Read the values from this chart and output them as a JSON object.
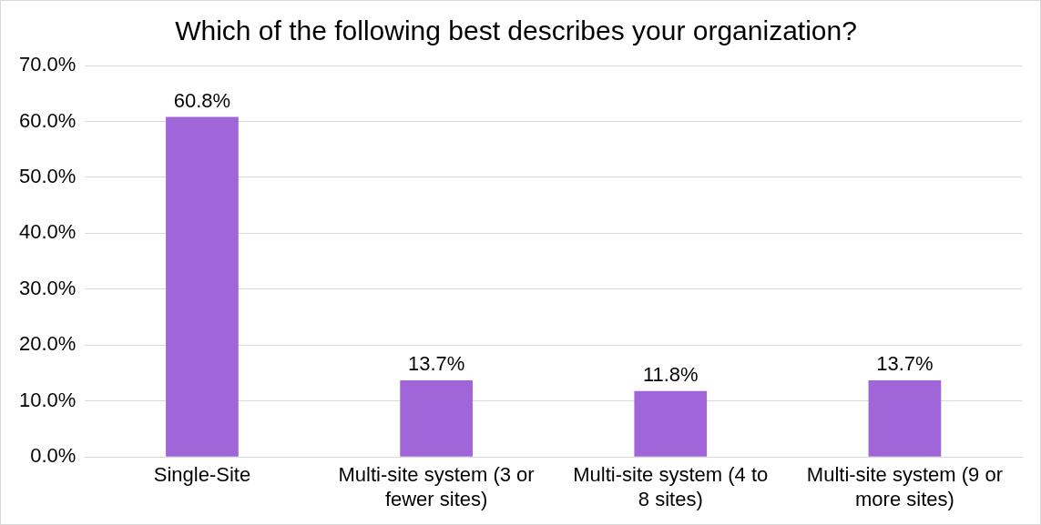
{
  "chart_data": {
    "type": "bar",
    "title": "Which of the following best describes your organization?",
    "categories": [
      "Single-Site",
      "Multi-site system (3 or fewer sites)",
      "Multi-site system (4 to 8 sites)",
      "Multi-site system (9 or more sites)"
    ],
    "values": [
      60.8,
      13.7,
      11.8,
      13.7
    ],
    "color": "#a066d9",
    "value_labels": [
      "60.8%",
      "13.7%",
      "11.8%",
      "13.7%"
    ],
    "ylim": [
      0,
      70
    ],
    "yticks": [
      {
        "value": 0,
        "label": "0.0%"
      },
      {
        "value": 10,
        "label": "10.0%"
      },
      {
        "value": 20,
        "label": "20.0%"
      },
      {
        "value": 30,
        "label": "30.0%"
      },
      {
        "value": 40,
        "label": "40.0%"
      },
      {
        "value": 50,
        "label": "50.0%"
      },
      {
        "value": 60,
        "label": "60.0%"
      },
      {
        "value": 70,
        "label": "70.0%"
      }
    ],
    "grid": "y",
    "legend": false
  }
}
